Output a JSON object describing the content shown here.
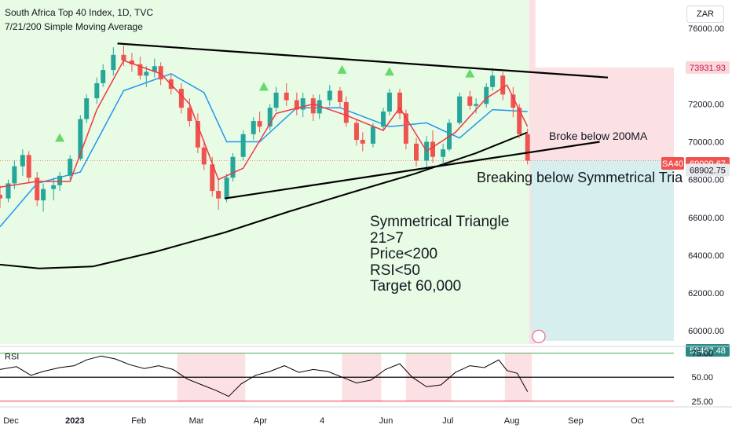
{
  "header": {
    "title": "South Africa Top 40 Index, 1D, TVC",
    "indicator": "7/21/200 Simple Moving Average"
  },
  "currency": "ZAR",
  "colors": {
    "bull_bg": "#e8fbe4",
    "bear_bg": "#fbe1e3",
    "target_bg": "#d6efee",
    "candle_up": "#26a69a",
    "candle_down": "#ef5350",
    "ma7": "#f23645",
    "ma21": "#2196f3",
    "ma200": "#000000",
    "rsi_line": "#000000",
    "green_marker": "#66d96b"
  },
  "annotations": {
    "broke_200ma": "Broke below 200MA",
    "breaking_triangle": "Breaking below Symmetrical Tria",
    "notes": [
      "Symmetrical Triangle",
      "21>7",
      "Price<200",
      "RSI<50",
      "Target 60,000"
    ]
  },
  "price_labels": {
    "top": "73931.93",
    "symbol": "SA40",
    "current": "69009.67",
    "stop": "68902.75",
    "target": "59467.48"
  },
  "chart_data": {
    "type": "candlestick",
    "title": "South Africa Top 40 Index, 1D, TVC",
    "y_ticks": [
      76000,
      74000,
      72000,
      70000,
      68000,
      66000,
      64000,
      62000,
      60000
    ],
    "y_tick_labels": [
      "76000.00",
      "74000.00",
      "72000.00",
      "70000.00",
      "68000.00",
      "66000.00",
      "64000.00",
      "62000.00",
      "60000.00"
    ],
    "ylim": [
      59300,
      77500
    ],
    "x_tick_labels": [
      "Dec",
      "2023",
      "Feb",
      "Mar",
      "Apr",
      "4",
      "Jun",
      "Jul",
      "Aug",
      "Sep",
      "Oct"
    ],
    "x_tick_dates": [
      "2022-12-01",
      "2023-01-01",
      "2023-02-01",
      "2023-03-01",
      "2023-04-01",
      "2023-05-01",
      "2023-06-01",
      "2023-07-01",
      "2023-08-01",
      "2023-09-01",
      "2023-10-01"
    ],
    "x_range": [
      "2022-12-01",
      "2023-10-24"
    ],
    "candles": [
      [
        "2022-12-01",
        67200,
        67700,
        66500,
        67000
      ],
      [
        "2022-12-05",
        67000,
        68000,
        66800,
        67800
      ],
      [
        "2022-12-08",
        67800,
        69000,
        67500,
        68700
      ],
      [
        "2022-12-12",
        68700,
        69600,
        68200,
        69300
      ],
      [
        "2022-12-15",
        69300,
        69500,
        67800,
        68100
      ],
      [
        "2022-12-19",
        68100,
        68400,
        66600,
        66900
      ],
      [
        "2022-12-22",
        66900,
        67800,
        66300,
        67500
      ],
      [
        "2022-12-27",
        67500,
        68100,
        66900,
        67700
      ],
      [
        "2022-12-30",
        67700,
        68400,
        67400,
        68200
      ],
      [
        "2023-01-04",
        68200,
        69300,
        68000,
        69100
      ],
      [
        "2023-01-09",
        69100,
        71400,
        69000,
        71200
      ],
      [
        "2023-01-12",
        71200,
        72500,
        71000,
        72300
      ],
      [
        "2023-01-17",
        72300,
        73400,
        72000,
        73100
      ],
      [
        "2023-01-20",
        73100,
        74100,
        72900,
        73800
      ],
      [
        "2023-01-25",
        73800,
        75000,
        73500,
        74600
      ],
      [
        "2023-01-30",
        74600,
        75100,
        74000,
        74300
      ],
      [
        "2023-02-03",
        74300,
        74700,
        73700,
        74100
      ],
      [
        "2023-02-07",
        74100,
        74500,
        73300,
        73500
      ],
      [
        "2023-02-10",
        73500,
        74000,
        72900,
        73700
      ],
      [
        "2023-02-14",
        73700,
        74400,
        73400,
        74000
      ],
      [
        "2023-02-17",
        74000,
        74200,
        73000,
        73300
      ],
      [
        "2023-02-22",
        73300,
        73600,
        72500,
        72800
      ],
      [
        "2023-02-27",
        72800,
        73100,
        71500,
        71800
      ],
      [
        "2023-03-03",
        71800,
        72300,
        70800,
        71100
      ],
      [
        "2023-03-07",
        71100,
        71500,
        69400,
        69700
      ],
      [
        "2023-03-10",
        69700,
        70100,
        68500,
        68800
      ],
      [
        "2023-03-14",
        68800,
        69200,
        67100,
        67400
      ],
      [
        "2023-03-17",
        67400,
        68000,
        66400,
        67000
      ],
      [
        "2023-03-21",
        67000,
        68300,
        66800,
        68100
      ],
      [
        "2023-03-24",
        68100,
        69400,
        67900,
        69200
      ],
      [
        "2023-03-29",
        69200,
        70600,
        69000,
        70400
      ],
      [
        "2023-04-03",
        70400,
        71300,
        70100,
        71100
      ],
      [
        "2023-04-06",
        71100,
        71600,
        70500,
        70800
      ],
      [
        "2023-04-11",
        70800,
        72000,
        70600,
        71800
      ],
      [
        "2023-04-14",
        71800,
        72900,
        71600,
        72600
      ],
      [
        "2023-04-19",
        72600,
        73100,
        71900,
        72200
      ],
      [
        "2023-04-24",
        72200,
        72600,
        71400,
        71700
      ],
      [
        "2023-04-27",
        71700,
        72600,
        71300,
        72300
      ],
      [
        "2023-05-02",
        72300,
        72500,
        71100,
        71500
      ],
      [
        "2023-05-05",
        71500,
        72500,
        71200,
        72200
      ],
      [
        "2023-05-10",
        72200,
        73000,
        71900,
        72700
      ],
      [
        "2023-05-15",
        72700,
        72900,
        71800,
        72100
      ],
      [
        "2023-05-18",
        72100,
        72400,
        70800,
        71000
      ],
      [
        "2023-05-23",
        71000,
        71200,
        69800,
        70100
      ],
      [
        "2023-05-26",
        70100,
        70500,
        69500,
        69900
      ],
      [
        "2023-05-31",
        69900,
        71000,
        69700,
        70800
      ],
      [
        "2023-06-05",
        70800,
        71800,
        70600,
        71600
      ],
      [
        "2023-06-08",
        71600,
        72800,
        71400,
        72600
      ],
      [
        "2023-06-13",
        72600,
        72800,
        71200,
        71500
      ],
      [
        "2023-06-16",
        71500,
        71700,
        69600,
        69900
      ],
      [
        "2023-06-21",
        69900,
        70200,
        68700,
        69000
      ],
      [
        "2023-06-26",
        69000,
        70300,
        68600,
        70000
      ],
      [
        "2023-06-29",
        70000,
        70600,
        68900,
        69200
      ],
      [
        "2023-07-04",
        69200,
        69900,
        68800,
        69600
      ],
      [
        "2023-07-07",
        69600,
        71200,
        69500,
        71000
      ],
      [
        "2023-07-12",
        71000,
        72600,
        70900,
        72400
      ],
      [
        "2023-07-17",
        72400,
        72700,
        71700,
        71900
      ],
      [
        "2023-07-20",
        71900,
        72300,
        71500,
        72000
      ],
      [
        "2023-07-25",
        72000,
        73100,
        71800,
        72900
      ],
      [
        "2023-07-28",
        72900,
        73900,
        72700,
        73500
      ],
      [
        "2023-08-02",
        73500,
        73700,
        72200,
        72500
      ],
      [
        "2023-08-07",
        72500,
        72900,
        71300,
        71800
      ],
      [
        "2023-08-10",
        71800,
        72000,
        70200,
        70400
      ],
      [
        "2023-08-14",
        70400,
        70700,
        68800,
        69000
      ]
    ],
    "series": [
      {
        "name": "7",
        "color": "#f23645",
        "points": [
          [
            "2022-12-01",
            67600
          ],
          [
            "2022-12-19",
            67900
          ],
          [
            "2023-01-04",
            67900
          ],
          [
            "2023-01-17",
            71700
          ],
          [
            "2023-01-30",
            74300
          ],
          [
            "2023-02-17",
            73600
          ],
          [
            "2023-03-03",
            72000
          ],
          [
            "2023-03-17",
            68000
          ],
          [
            "2023-03-29",
            68600
          ],
          [
            "2023-04-14",
            71500
          ],
          [
            "2023-05-02",
            72000
          ],
          [
            "2023-05-18",
            71400
          ],
          [
            "2023-06-05",
            70600
          ],
          [
            "2023-06-13",
            71800
          ],
          [
            "2023-06-26",
            69500
          ],
          [
            "2023-07-10",
            70500
          ],
          [
            "2023-07-25",
            72300
          ],
          [
            "2023-08-04",
            73000
          ],
          [
            "2023-08-14",
            70800
          ]
        ]
      },
      {
        "name": "21",
        "color": "#2196f3",
        "points": [
          [
            "2022-12-01",
            65500
          ],
          [
            "2022-12-19",
            67800
          ],
          [
            "2023-01-09",
            68400
          ],
          [
            "2023-01-30",
            72700
          ],
          [
            "2023-02-22",
            73600
          ],
          [
            "2023-03-10",
            72600
          ],
          [
            "2023-03-21",
            70000
          ],
          [
            "2023-04-06",
            70000
          ],
          [
            "2023-04-24",
            71800
          ],
          [
            "2023-05-15",
            71800
          ],
          [
            "2023-06-08",
            70800
          ],
          [
            "2023-06-26",
            71000
          ],
          [
            "2023-07-12",
            70200
          ],
          [
            "2023-07-28",
            71700
          ],
          [
            "2023-08-14",
            71600
          ]
        ]
      },
      {
        "name": "200",
        "color": "#000000",
        "points": [
          [
            "2022-12-01",
            63500
          ],
          [
            "2022-12-20",
            63300
          ],
          [
            "2023-01-15",
            63400
          ],
          [
            "2023-02-15",
            64200
          ],
          [
            "2023-03-20",
            65200
          ],
          [
            "2023-04-20",
            66300
          ],
          [
            "2023-05-20",
            67300
          ],
          [
            "2023-06-20",
            68300
          ],
          [
            "2023-07-20",
            69400
          ],
          [
            "2023-08-14",
            70500
          ]
        ]
      }
    ],
    "trendlines": [
      {
        "from": [
          "2023-01-27",
          75200
        ],
        "to": [
          "2023-09-22",
          73400
        ]
      },
      {
        "from": [
          "2023-03-20",
          67000
        ],
        "to": [
          "2023-09-18",
          70000
        ]
      }
    ],
    "target_box": {
      "from": "2023-08-14",
      "to": "2023-10-24",
      "entry": 69009.67,
      "stop": 73931.93,
      "target": 59467.48
    },
    "signals": [
      "2022-12-30",
      "2023-04-08",
      "2023-05-16",
      "2023-06-08",
      "2023-07-17"
    ],
    "rsi": {
      "label": "RSI",
      "y_ticks": [
        75,
        50,
        25
      ],
      "y_tick_labels": [
        "75.00",
        "50.00",
        "25.00"
      ],
      "ylim": [
        24,
        78
      ],
      "points": [
        [
          "2022-12-01",
          58
        ],
        [
          "2022-12-09",
          61
        ],
        [
          "2022-12-16",
          52
        ],
        [
          "2022-12-22",
          56
        ],
        [
          "2022-12-30",
          60
        ],
        [
          "2023-01-06",
          62
        ],
        [
          "2023-01-12",
          68
        ],
        [
          "2023-01-19",
          72
        ],
        [
          "2023-01-26",
          69
        ],
        [
          "2023-02-02",
          63
        ],
        [
          "2023-02-09",
          59
        ],
        [
          "2023-02-16",
          62
        ],
        [
          "2023-02-23",
          58
        ],
        [
          "2023-03-02",
          48
        ],
        [
          "2023-03-09",
          42
        ],
        [
          "2023-03-16",
          36
        ],
        [
          "2023-03-22",
          30
        ],
        [
          "2023-03-28",
          43
        ],
        [
          "2023-04-04",
          52
        ],
        [
          "2023-04-11",
          56
        ],
        [
          "2023-04-18",
          62
        ],
        [
          "2023-04-25",
          55
        ],
        [
          "2023-05-02",
          58
        ],
        [
          "2023-05-09",
          56
        ],
        [
          "2023-05-16",
          50
        ],
        [
          "2023-05-23",
          44
        ],
        [
          "2023-05-30",
          47
        ],
        [
          "2023-06-06",
          58
        ],
        [
          "2023-06-13",
          64
        ],
        [
          "2023-06-19",
          50
        ],
        [
          "2023-06-26",
          40
        ],
        [
          "2023-07-03",
          42
        ],
        [
          "2023-07-10",
          55
        ],
        [
          "2023-07-17",
          62
        ],
        [
          "2023-07-24",
          60
        ],
        [
          "2023-07-31",
          68
        ],
        [
          "2023-08-04",
          57
        ],
        [
          "2023-08-09",
          54
        ],
        [
          "2023-08-14",
          35
        ]
      ],
      "bear_zones": [
        [
          "2023-02-25",
          "2023-03-30"
        ],
        [
          "2023-05-16",
          "2023-06-04"
        ],
        [
          "2023-06-16",
          "2023-07-08"
        ],
        [
          "2023-08-03",
          "2023-08-16"
        ]
      ]
    }
  }
}
